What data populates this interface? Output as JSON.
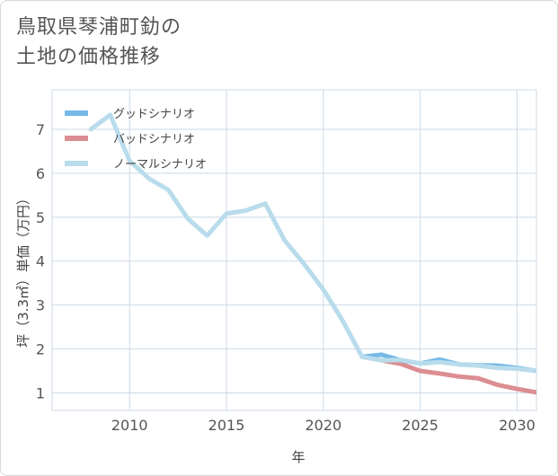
{
  "title": {
    "line1": "鳥取県琴浦町釛の",
    "line2": "土地の価格推移"
  },
  "colors": {
    "good": "#74b9e7",
    "bad": "#dc8e93",
    "normal": "#b9dcec",
    "grid": "#ccd9e6",
    "text": "#555555"
  },
  "chart_data": {
    "type": "line",
    "title": "鳥取県琴浦町釛の土地の価格推移",
    "xlabel": "年",
    "ylabel": "坪（3.3㎡）単価（万円）",
    "xlim": [
      2006,
      2031
    ],
    "ylim": [
      0.6,
      7.9
    ],
    "xticks": [
      2010,
      2015,
      2020,
      2025,
      2030
    ],
    "yticks": [
      1,
      2,
      3,
      4,
      5,
      6,
      7
    ],
    "xtick_labels": [
      "2010",
      "2015",
      "2020",
      "2025",
      "2030"
    ],
    "ytick_labels": [
      "1",
      "2",
      "3",
      "4",
      "5",
      "6",
      "7"
    ],
    "legend_position": "top-left",
    "series": [
      {
        "name": "グッドシナリオ",
        "key": "good",
        "x": [
          2022,
          2023,
          2024,
          2025,
          2026,
          2027,
          2028,
          2029,
          2030,
          2031
        ],
        "values": [
          1.82,
          1.87,
          1.74,
          1.67,
          1.76,
          1.65,
          1.63,
          1.62,
          1.57,
          1.5
        ]
      },
      {
        "name": "バッドシナリオ",
        "key": "bad",
        "x": [
          2022,
          2023,
          2024,
          2025,
          2026,
          2027,
          2028,
          2029,
          2030,
          2031
        ],
        "values": [
          1.82,
          1.74,
          1.66,
          1.5,
          1.44,
          1.37,
          1.33,
          1.18,
          1.09,
          1.01
        ]
      },
      {
        "name": "ノーマルシナリオ",
        "key": "normal",
        "x": [
          2008,
          2009,
          2010,
          2011,
          2012,
          2013,
          2014,
          2015,
          2016,
          2017,
          2018,
          2019,
          2020,
          2021,
          2022,
          2023,
          2024,
          2025,
          2026,
          2027,
          2028,
          2029,
          2030,
          2031
        ],
        "values": [
          7.0,
          7.33,
          6.28,
          5.88,
          5.62,
          4.97,
          4.58,
          5.08,
          5.15,
          5.31,
          4.47,
          3.94,
          3.35,
          2.64,
          1.82,
          1.74,
          1.75,
          1.67,
          1.7,
          1.65,
          1.62,
          1.57,
          1.55,
          1.5
        ]
      }
    ]
  }
}
